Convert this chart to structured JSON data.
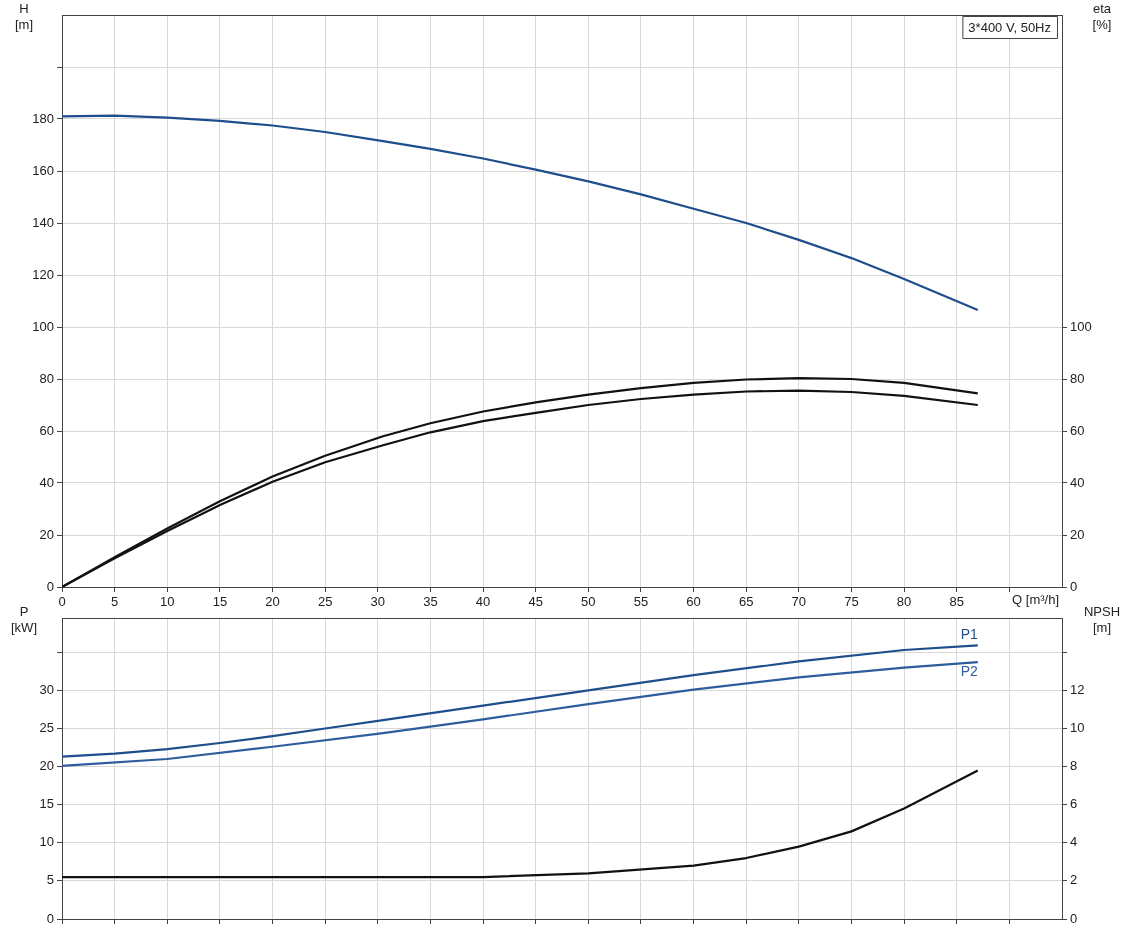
{
  "chart_data": [
    {
      "type": "line",
      "title": "3*400 V, 50Hz",
      "xlabel": "Q [m³/h]",
      "ylabel": "H [m]",
      "y2label": "eta [%]",
      "xlim": [
        0,
        95
      ],
      "xticks": [
        0,
        5,
        10,
        15,
        20,
        25,
        30,
        35,
        40,
        45,
        50,
        55,
        60,
        65,
        70,
        75,
        80,
        85,
        {
          "value": 90,
          "label": null
        }
      ],
      "ylim": [
        0,
        220
      ],
      "yticks": [
        0,
        20,
        40,
        60,
        80,
        100,
        120,
        140,
        160,
        180,
        {
          "value": 200,
          "label": null
        }
      ],
      "y2lim": [
        0,
        220
      ],
      "y2ticks": [
        0,
        20,
        40,
        60,
        80,
        100
      ],
      "grid": true,
      "legend": false,
      "marker": "none",
      "line_style": "solid",
      "series": [
        {
          "color": "#1f4e8c",
          "x": [
            0,
            5,
            10,
            15,
            20,
            25,
            30.5,
            35,
            40,
            45,
            50,
            55,
            60,
            65,
            70,
            75,
            80,
            87
          ],
          "values": [
            181,
            181.3,
            180.5,
            179.3,
            177.5,
            175,
            171.5,
            168.5,
            164.8,
            160.5,
            156,
            151,
            145.5,
            140,
            133.5,
            126.5,
            118.5,
            106.5
          ]
        },
        {
          "color": "#111111",
          "axis": "y2",
          "x": [
            0,
            5,
            10,
            15,
            20,
            25,
            30.5,
            35,
            40,
            45,
            50,
            55,
            60,
            65,
            70,
            75,
            80,
            87
          ],
          "values": [
            0,
            11.5,
            22.5,
            33,
            42.5,
            50.5,
            58,
            63,
            67.5,
            71,
            74,
            76.5,
            78.5,
            79.8,
            80.3,
            80,
            78.5,
            74.5
          ]
        },
        {
          "color": "#111111",
          "axis": "y2",
          "x": [
            0,
            5,
            10,
            15,
            20,
            25,
            30.5,
            35,
            40,
            45,
            50,
            55,
            60,
            65,
            70,
            75,
            80,
            87
          ],
          "values": [
            0,
            11,
            21.5,
            31.5,
            40.5,
            48,
            54.5,
            59.5,
            63.8,
            67,
            70,
            72.3,
            74,
            75.2,
            75.5,
            75,
            73.5,
            70
          ]
        }
      ]
    },
    {
      "type": "line",
      "ylabel": "P [kW]",
      "y2label": "NPSH [m]",
      "tick_labels": "y",
      "xlim": [
        0,
        95
      ],
      "xticks": [
        0,
        5,
        10,
        15,
        20,
        25,
        30,
        35,
        40,
        45,
        50,
        55,
        60,
        65,
        70,
        75,
        80,
        85,
        90
      ],
      "ylim": [
        0,
        39.5
      ],
      "yticks": [
        0,
        5,
        10,
        15,
        20,
        25,
        30,
        {
          "value": 35,
          "label": null
        }
      ],
      "y2lim": [
        0,
        15.8
      ],
      "y2ticks": [
        0,
        2,
        4,
        6,
        8,
        10,
        12,
        {
          "value": 14,
          "label": null
        }
      ],
      "grid": true,
      "legend": false,
      "marker": "none",
      "line_style": "solid",
      "series": [
        {
          "name": "P1",
          "color": "#1f4e8c",
          "x": [
            0,
            5,
            10,
            15,
            20,
            25,
            30.5,
            40,
            50,
            60,
            70,
            80,
            87
          ],
          "values": [
            21.3,
            21.7,
            22.3,
            23.1,
            24,
            25,
            26.1,
            28,
            30,
            32,
            33.8,
            35.3,
            35.9
          ]
        },
        {
          "name": "P2",
          "color": "#2f5c9c",
          "x": [
            0,
            10,
            20,
            30.5,
            40,
            50,
            60,
            70,
            80,
            87
          ],
          "values": [
            20.1,
            21,
            22.6,
            24.4,
            26.2,
            28.2,
            30.1,
            31.7,
            33,
            33.7
          ]
        },
        {
          "color": "#111111",
          "axis": "y2",
          "x": [
            0,
            10,
            20,
            30.5,
            40,
            50,
            60,
            65,
            70,
            75,
            80,
            87
          ],
          "values": [
            2.2,
            2.2,
            2.2,
            2.2,
            2.2,
            2.4,
            2.8,
            3.2,
            3.8,
            4.6,
            5.8,
            7.8
          ]
        }
      ]
    }
  ]
}
